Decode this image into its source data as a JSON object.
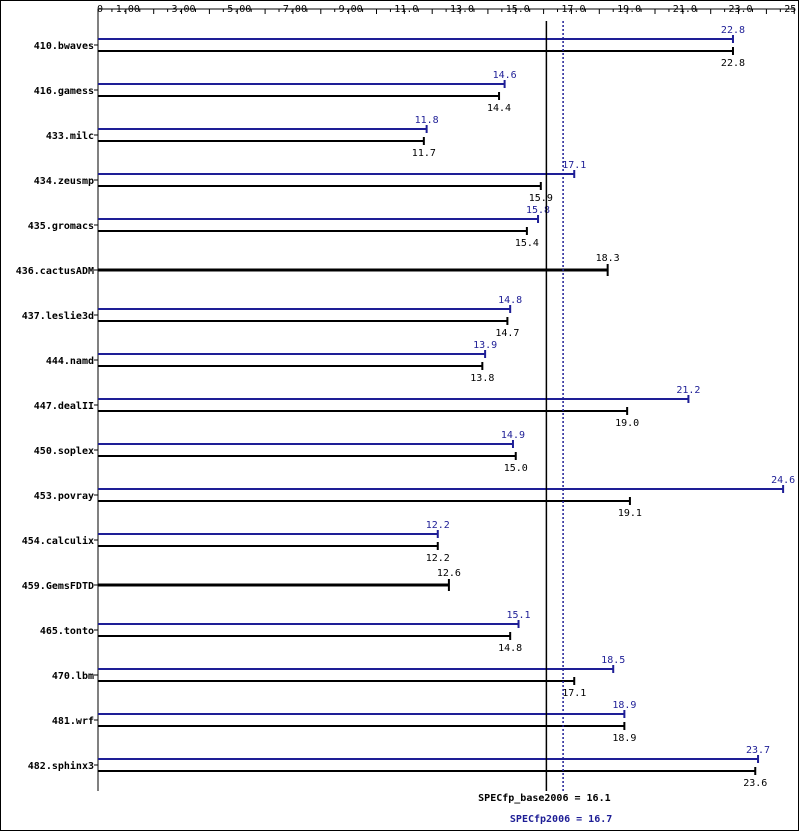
{
  "chart_data": {
    "type": "bar",
    "orientation": "horizontal",
    "xlim": [
      0,
      25
    ],
    "x_ticks": [
      "0",
      "1.00",
      "3.00",
      "5.00",
      "7.00",
      "9.00",
      "11.0",
      "13.0",
      "15.0",
      "17.0",
      "19.0",
      "21.0",
      "23.0",
      "25.0"
    ],
    "x_tick_values": [
      0,
      1,
      3,
      5,
      7,
      9,
      11,
      13,
      15,
      17,
      19,
      21,
      23,
      25
    ],
    "categories": [
      "410.bwaves",
      "416.gamess",
      "433.milc",
      "434.zeusmp",
      "435.gromacs",
      "436.cactusADM",
      "437.leslie3d",
      "444.namd",
      "447.dealII",
      "450.soplex",
      "453.povray",
      "454.calculix",
      "459.GemsFDTD",
      "465.tonto",
      "470.lbm",
      "481.wrf",
      "482.sphinx3"
    ],
    "series": [
      {
        "key": "peak",
        "color": "#1e1e96",
        "values": [
          22.8,
          14.6,
          11.8,
          17.1,
          15.8,
          null,
          14.8,
          13.9,
          21.2,
          14.9,
          24.6,
          12.2,
          null,
          15.1,
          18.5,
          18.9,
          23.7
        ],
        "labels": [
          "22.8",
          "14.6",
          "11.8",
          "17.1",
          "15.8",
          "",
          "14.8",
          "13.9",
          "21.2",
          "14.9",
          "24.6",
          "12.2",
          "",
          "15.1",
          "18.5",
          "18.9",
          "23.7"
        ]
      },
      {
        "key": "base",
        "color": "#000000",
        "values": [
          22.8,
          14.4,
          11.7,
          15.9,
          15.4,
          18.3,
          14.7,
          13.8,
          19.0,
          15.0,
          19.1,
          12.2,
          12.6,
          14.8,
          17.1,
          18.9,
          23.6
        ],
        "labels": [
          "22.8",
          "14.4",
          "11.7",
          "15.9",
          "15.4",
          "18.3",
          "14.7",
          "13.8",
          "19.0",
          "15.0",
          "19.1",
          "12.2",
          "12.6",
          "14.8",
          "17.1",
          "18.9",
          "23.6"
        ]
      }
    ],
    "reference_lines": [
      {
        "key": "base",
        "value": 16.1,
        "label": "SPECfp_base2006 = 16.1",
        "color": "#000000",
        "style": "solid"
      },
      {
        "key": "peak",
        "value": 16.7,
        "label": "SPECfp2006 = 16.7",
        "color": "#1e1e96",
        "style": "dotted"
      }
    ],
    "legend": "none",
    "grid": false
  }
}
